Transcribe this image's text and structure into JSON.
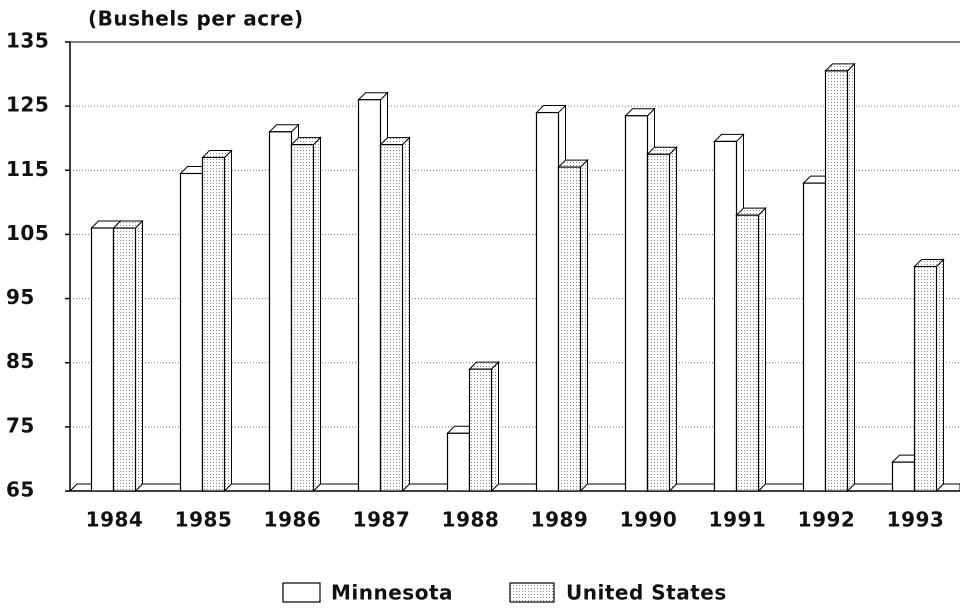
{
  "chart_data": {
    "type": "bar",
    "y_label": "(Bushels per acre)",
    "categories": [
      "1984",
      "1985",
      "1986",
      "1987",
      "1988",
      "1989",
      "1990",
      "1991",
      "1992",
      "1993"
    ],
    "series": [
      {
        "name": "Minnesota",
        "color": "#ffffff",
        "values": [
          106,
          114.5,
          121,
          126,
          74,
          124,
          123.5,
          119.5,
          113,
          69.5
        ]
      },
      {
        "name": "United States",
        "color": "#8a8a8a",
        "values": [
          106,
          117,
          119,
          119,
          84,
          115.5,
          117.5,
          108,
          130.5,
          100
        ]
      }
    ],
    "ylim": [
      65,
      135
    ],
    "yticks": [
      65,
      75,
      85,
      95,
      105,
      115,
      125,
      135
    ],
    "grid": true
  }
}
